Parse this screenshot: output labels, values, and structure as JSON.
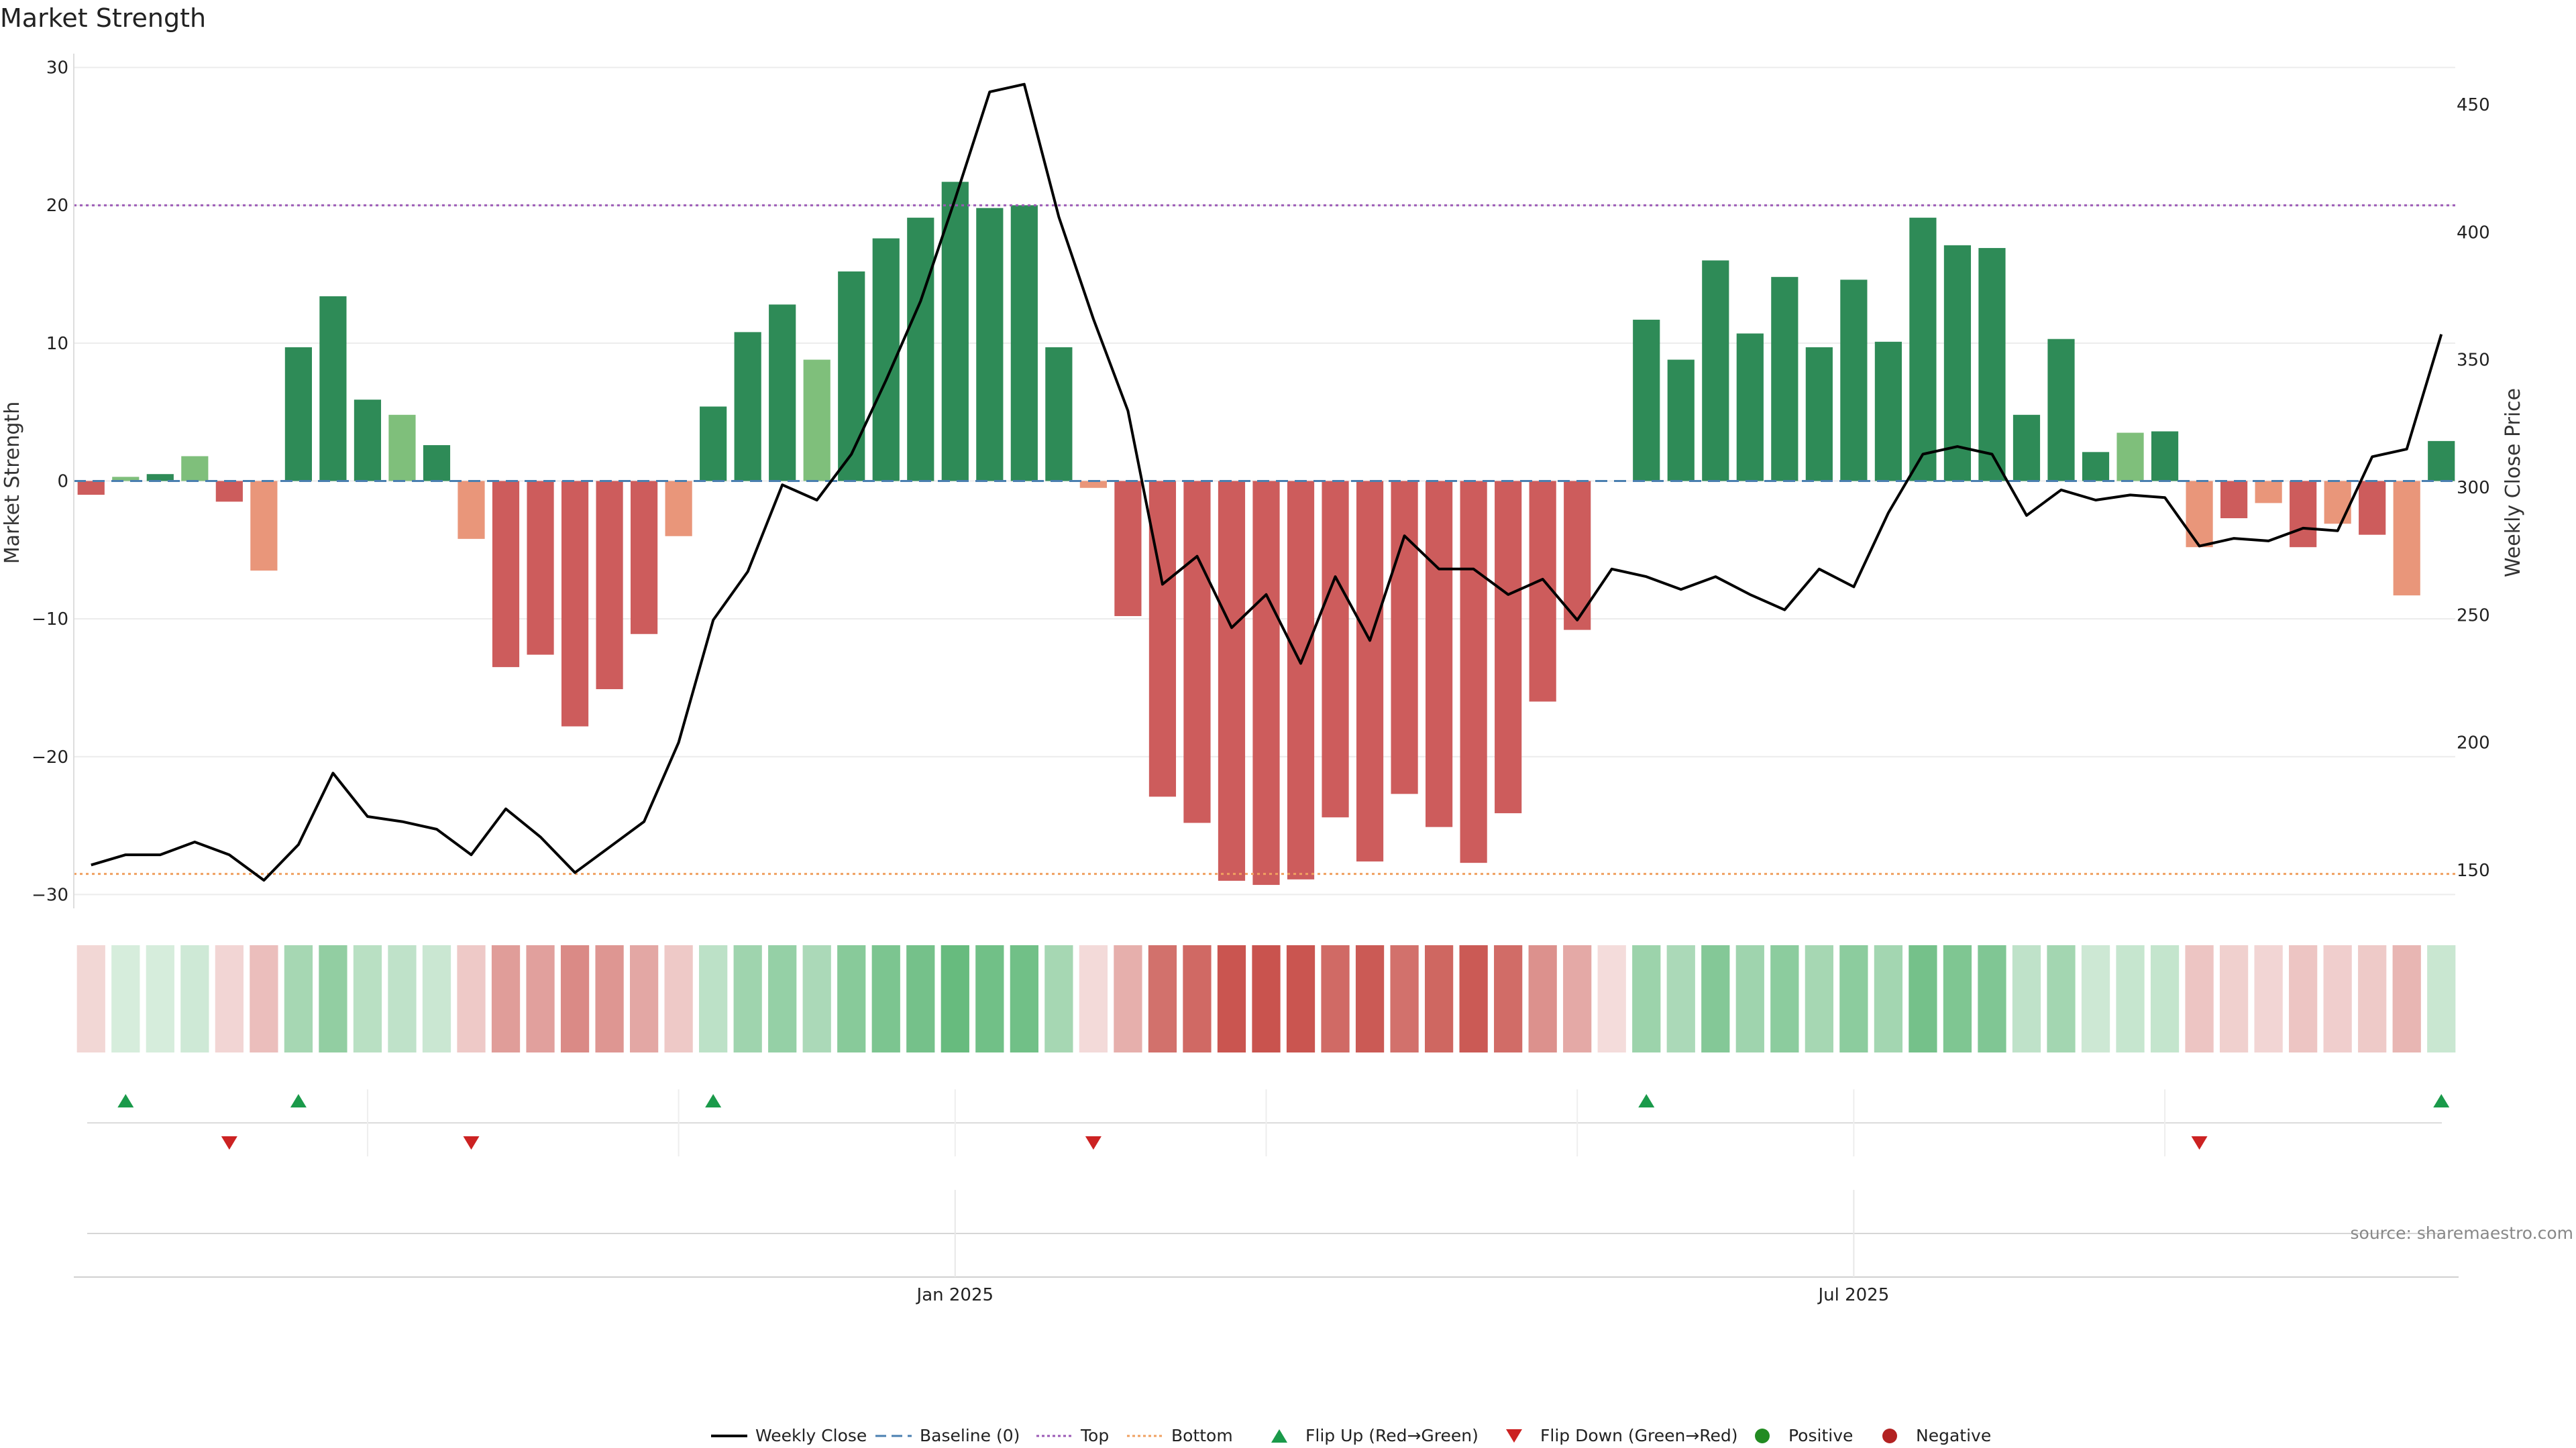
{
  "chart_data": {
    "type": "bar",
    "title": "Market Strength",
    "ylabel_left": "Market Strength",
    "ylabel_right": "Weekly Close Price",
    "ylim_left": [
      -31,
      31
    ],
    "ylim_right": [
      135,
      470
    ],
    "yticks_left": [
      "30",
      "20",
      "10",
      "0",
      "−10",
      "−20",
      "−30"
    ],
    "yticks_left_values": [
      30,
      20,
      10,
      0,
      -10,
      -20,
      -30
    ],
    "yticks_right": [
      "450",
      "400",
      "350",
      "300",
      "250",
      "200",
      "150"
    ],
    "yticks_right_values": [
      450,
      400,
      350,
      300,
      250,
      200,
      150
    ],
    "xticks": [
      "Jan 2025",
      "Jul 2025"
    ],
    "xtick_index": [
      25.5,
      51.5
    ],
    "top_line": 20,
    "bottom_line": -28.5,
    "grid": true,
    "strength": [
      -1,
      0.3,
      0.5,
      1.8,
      -1.5,
      -6.5,
      9.7,
      13.4,
      5.9,
      4.8,
      2.6,
      -4.2,
      -13.5,
      -12.6,
      -17.8,
      -15.1,
      -11.1,
      -4,
      5.4,
      10.8,
      12.8,
      8.8,
      15.2,
      17.6,
      19.1,
      21.7,
      19.8,
      20,
      9.7,
      -0.5,
      -9.8,
      -22.9,
      -24.8,
      -29,
      -29.3,
      -28.9,
      -24.4,
      -27.6,
      -22.7,
      -25.1,
      -27.7,
      -24.1,
      -16,
      -10.8,
      0,
      11.7,
      8.8,
      16,
      10.7,
      14.8,
      9.7,
      14.6,
      10.1,
      19.1,
      17.1,
      16.9,
      4.8,
      10.3,
      2.1,
      3.5,
      3.6,
      -4.8,
      -2.7,
      -1.6,
      -4.8,
      -3.1,
      -3.9,
      -8.3,
      2.9
    ],
    "close": [
      152,
      156,
      156,
      161,
      156,
      146,
      160,
      188,
      171,
      169,
      166,
      156,
      174,
      163,
      149,
      159,
      169,
      200,
      248,
      267,
      301,
      295,
      313,
      342,
      373,
      413,
      455,
      458,
      406,
      366,
      330,
      262,
      273,
      245,
      258,
      231,
      265,
      240,
      281,
      268,
      268,
      258,
      264,
      248,
      268,
      265,
      260,
      265,
      258,
      252,
      268,
      261,
      290,
      313,
      316,
      313,
      289,
      299,
      295,
      297,
      296,
      277,
      280,
      279,
      284,
      283,
      312,
      315,
      360
    ],
    "polarity": [
      "neg",
      "pos",
      "pos",
      "pos",
      "neg",
      "neg",
      "pos",
      "pos",
      "pos",
      "pos",
      "pos",
      "neg",
      "neg",
      "neg",
      "neg",
      "neg",
      "neg",
      "neg",
      "pos",
      "pos",
      "pos",
      "pos",
      "pos",
      "pos",
      "pos",
      "pos",
      "pos",
      "pos",
      "pos",
      "neg",
      "neg",
      "neg",
      "neg",
      "neg",
      "neg",
      "neg",
      "neg",
      "neg",
      "neg",
      "neg",
      "neg",
      "neg",
      "neg",
      "neg",
      "neg",
      "pos",
      "pos",
      "pos",
      "pos",
      "pos",
      "pos",
      "pos",
      "pos",
      "pos",
      "pos",
      "pos",
      "pos",
      "pos",
      "pos",
      "pos",
      "pos",
      "neg",
      "neg",
      "neg",
      "neg",
      "neg",
      "neg",
      "neg",
      "pos"
    ],
    "flip_up_index": [
      1,
      6,
      18,
      45,
      68
    ],
    "flip_down_index": [
      4,
      11,
      29,
      61
    ],
    "series": [
      {
        "name": "Weekly Close",
        "type": "line"
      },
      {
        "name": "Baseline (0)",
        "type": "hline"
      },
      {
        "name": "Top",
        "type": "hline"
      },
      {
        "name": "Bottom",
        "type": "hline"
      }
    ],
    "legend": [
      "Weekly Close",
      "Baseline (0)",
      "Top",
      "Bottom",
      "Flip Up (Red→Green)",
      "Flip Down (Green→Red)",
      "Positive",
      "Negative"
    ],
    "legend_position": "bottom-center",
    "source": "source: sharemaestro.com"
  },
  "colors": {
    "pos_strong": "#2e8b57",
    "pos_light": "#7fbf7b",
    "neg_strong": "#cd5c5c",
    "neg_light": "#e9967a",
    "price_line": "#000000",
    "baseline": "#4a7fb0",
    "top": "#9b59b6",
    "bottom": "#f0a060",
    "flip_up": "#1a9a4a",
    "flip_down": "#cc2222",
    "dot_positive": "#228B22",
    "dot_negative": "#b22222"
  }
}
